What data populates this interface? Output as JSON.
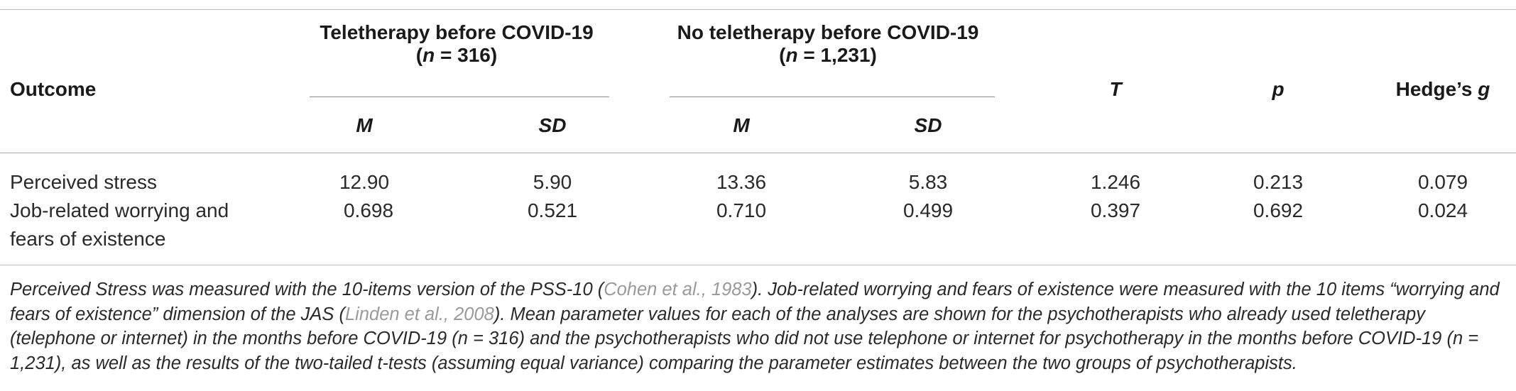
{
  "header": {
    "outcome": "Outcome",
    "group1_title": "Teletherapy before COVID-19",
    "group1_n_prefix": "(",
    "group1_n_label": "n",
    "group1_n_value": " = 316)",
    "group2_title": "No teletherapy before COVID-19",
    "group2_n_prefix": "(",
    "group2_n_label": "n",
    "group2_n_value": " = 1,231)",
    "m": "M",
    "sd": "SD",
    "t": "T",
    "p": "p",
    "hedges_prefix": "Hedge’s ",
    "hedges_g": "g"
  },
  "rows": [
    {
      "outcome_line1": "Perceived stress",
      "outcome_line2": "",
      "m1": "12.90",
      "sd1": "5.90",
      "m2": "13.36",
      "sd2": "5.83",
      "t": "1.246",
      "p": "0.213",
      "g": "0.079"
    },
    {
      "outcome_line1": "Job-related worrying and",
      "outcome_line2": "fears of existence",
      "m1": "0.698",
      "sd1": "0.521",
      "m2": "0.710",
      "sd2": "0.499",
      "t": "0.397",
      "p": "0.692",
      "g": "0.024"
    }
  ],
  "note": {
    "part1": "Perceived Stress was measured with the 10-items version of the PSS-10 (",
    "ref1": "Cohen et al., 1983",
    "part2": "). Job-related worrying and fears of existence were measured with the 10 items “worrying and fears of existence” dimension of the JAS (",
    "ref2": "Linden et al., 2008",
    "part3": "). Mean parameter values for each of the analyses are shown for the psychotherapists who already used teletherapy (telephone or internet) in the months before COVID-19 (n = 316) and the psychotherapists who did not use telephone or internet for psychotherapy in the months before COVID-19 (n = 1,231), as well as the results of the two-tailed t-tests (assuming equal variance) comparing the parameter estimates between the two groups of psychotherapists."
  }
}
